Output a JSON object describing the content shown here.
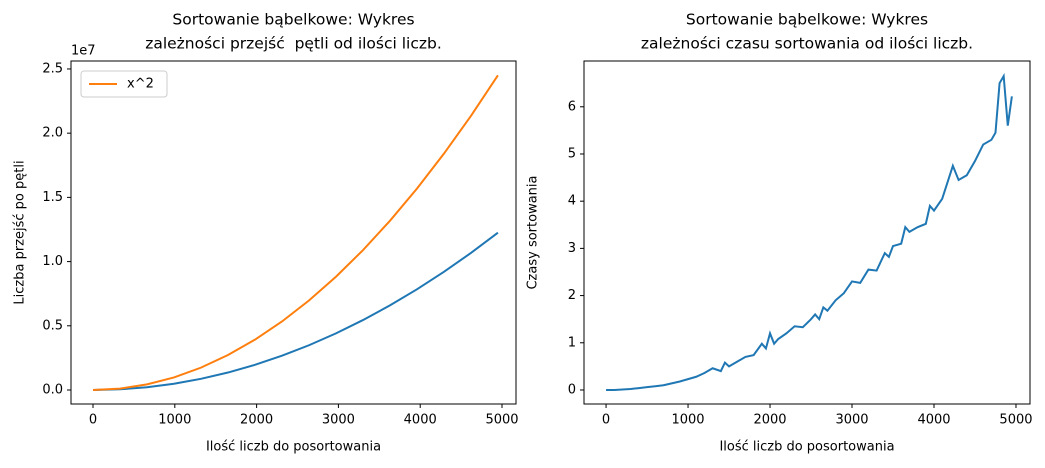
{
  "chart_data": [
    {
      "type": "line",
      "title": [
        "Sortowanie bąbelkowe: Wykres",
        "zależności przejść  pętli od ilości liczb."
      ],
      "x_label": "Ilość liczb do posortowania",
      "y_label": "Liczba przejść po pętli",
      "offset_text": "1e7",
      "x": [
        0,
        330,
        660,
        990,
        1320,
        1650,
        1980,
        2310,
        2640,
        2970,
        3300,
        3630,
        3960,
        4290,
        4620,
        4950
      ],
      "series": [
        {
          "color": "#1f77b4",
          "values": [
            0,
            0.0054,
            0.0218,
            0.049,
            0.0871,
            0.1361,
            0.196,
            0.2668,
            0.3485,
            0.441,
            0.5445,
            0.6588,
            0.7841,
            0.9202,
            1.0672,
            1.2251
          ]
        },
        {
          "name": "x^2",
          "color": "#ff7f0e",
          "values": [
            0,
            0.0109,
            0.0436,
            0.098,
            0.1742,
            0.2723,
            0.392,
            0.5336,
            0.697,
            0.8821,
            1.089,
            1.3177,
            1.5682,
            1.8404,
            2.1344,
            2.4503
          ]
        }
      ],
      "xlim": [
        -269,
        5171
      ],
      "xticks": [
        0,
        1000,
        2000,
        3000,
        4000,
        5000
      ],
      "ylim": [
        -0.109,
        2.562
      ],
      "yticks": [
        {
          "value": 0,
          "label": "0.0"
        },
        0.5,
        {
          "value": 1,
          "label": "1.0"
        },
        1.5,
        {
          "value": 2,
          "label": "2.0"
        },
        2.5
      ],
      "legend": "upper-left"
    },
    {
      "type": "line",
      "title": [
        "Sortowanie bąbelkowe: Wykres",
        "zależności czasu sortowania od ilości liczb."
      ],
      "x_label": "Ilość liczb do posortowania",
      "y_label": "Czasy sortowania",
      "x": [
        0,
        100,
        200,
        300,
        400,
        500,
        600,
        700,
        800,
        900,
        1000,
        1100,
        1200,
        1300,
        1400,
        1450,
        1500,
        1600,
        1700,
        1800,
        1900,
        1950,
        2000,
        2050,
        2100,
        2200,
        2300,
        2400,
        2500,
        2550,
        2600,
        2650,
        2700,
        2800,
        2900,
        3000,
        3100,
        3200,
        3300,
        3400,
        3450,
        3500,
        3600,
        3650,
        3700,
        3800,
        3900,
        3950,
        4000,
        4100,
        4230,
        4300,
        4400,
        4500,
        4600,
        4700,
        4750,
        4800,
        4850,
        4900,
        4950
      ],
      "series": [
        {
          "color": "#1f77b4",
          "values": [
            0,
            0,
            0.01,
            0.02,
            0.04,
            0.06,
            0.08,
            0.1,
            0.14,
            0.18,
            0.23,
            0.28,
            0.36,
            0.46,
            0.4,
            0.58,
            0.5,
            0.6,
            0.7,
            0.74,
            0.98,
            0.88,
            1.2,
            0.98,
            1.08,
            1.2,
            1.35,
            1.33,
            1.5,
            1.6,
            1.5,
            1.75,
            1.68,
            1.9,
            2.05,
            2.3,
            2.27,
            2.55,
            2.53,
            2.9,
            2.82,
            3.05,
            3.1,
            3.45,
            3.35,
            3.45,
            3.52,
            3.9,
            3.8,
            4.05,
            4.75,
            4.45,
            4.55,
            4.85,
            5.2,
            5.3,
            5.45,
            6.5,
            6.65,
            5.6,
            6.22
          ]
        }
      ],
      "xlim": [
        -269,
        5171
      ],
      "xticks": [
        0,
        1000,
        2000,
        3000,
        4000,
        5000
      ],
      "ylim": [
        -0.297,
        6.97
      ],
      "yticks": [
        0,
        1,
        2,
        3,
        4,
        5,
        6
      ]
    }
  ]
}
